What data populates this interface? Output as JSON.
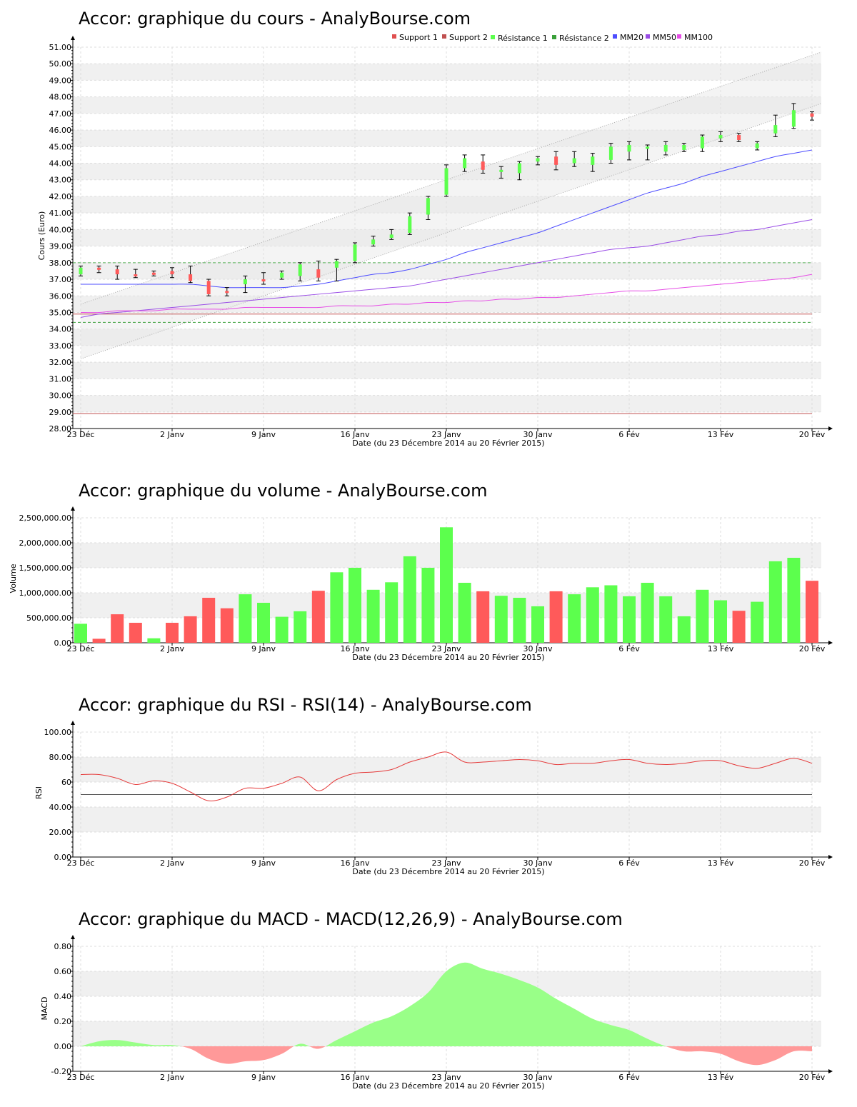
{
  "colors": {
    "up": "#5cff4d",
    "down": "#ff5a5a",
    "rsi_line": "#e53a3a",
    "ref_line": "#555555",
    "mm20": "#4d4dff",
    "mm50": "#9a4de6",
    "mm100": "#e64de6",
    "support": "#c05050",
    "resistance": "#3aa03a",
    "macd_pos": "#99ff88",
    "macd_neg": "#ff9999",
    "band": "#f0f0f0",
    "grid": "#dddddd"
  },
  "dates_axis": {
    "labels": [
      "23 Déc",
      "2 Janv",
      "9 Janv",
      "16 Janv",
      "23 Janv",
      "30 Janv",
      "6 Fév",
      "13 Fév",
      "20 Fév"
    ],
    "positions": [
      0,
      5,
      10,
      15,
      20,
      25,
      30,
      35,
      40
    ],
    "xlabel": "Date (du 23 Décembre 2014 au 20 Février 2015)"
  },
  "chart_data": [
    {
      "id": "price",
      "type": "candlestick",
      "title": "Accor: graphique du cours - AnalyBourse.com",
      "ylabel": "Cours (Euro)",
      "ylim": [
        28,
        51
      ],
      "yticks": [
        "28.00",
        "29.00",
        "30.00",
        "31.00",
        "32.00",
        "33.00",
        "34.00",
        "35.00",
        "36.00",
        "37.00",
        "38.00",
        "39.00",
        "40.00",
        "41.00",
        "42.00",
        "43.00",
        "44.00",
        "45.00",
        "46.00",
        "47.00",
        "48.00",
        "49.00",
        "50.00",
        "51.00"
      ],
      "legend": [
        "Support 1",
        "Support 2",
        "Résistance 1",
        "Résistance 2",
        "MM20",
        "MM50",
        "MM100"
      ],
      "legend_position": "top-right",
      "candles": [
        {
          "o": 37.3,
          "c": 37.7,
          "h": 37.8,
          "l": 37.2
        },
        {
          "o": 37.7,
          "c": 37.6,
          "h": 37.8,
          "l": 37.4
        },
        {
          "o": 37.6,
          "c": 37.3,
          "h": 37.8,
          "l": 37.0
        },
        {
          "o": 37.3,
          "c": 37.2,
          "h": 37.6,
          "l": 37.1
        },
        {
          "o": 37.4,
          "c": 37.3,
          "h": 37.5,
          "l": 37.2
        },
        {
          "o": 37.5,
          "c": 37.3,
          "h": 37.7,
          "l": 37.1
        },
        {
          "o": 37.3,
          "c": 36.9,
          "h": 37.8,
          "l": 36.8
        },
        {
          "o": 36.9,
          "c": 36.1,
          "h": 37.0,
          "l": 36.0
        },
        {
          "o": 36.3,
          "c": 36.2,
          "h": 36.5,
          "l": 36.0
        },
        {
          "o": 36.7,
          "c": 37.0,
          "h": 37.2,
          "l": 36.2
        },
        {
          "o": 37.0,
          "c": 36.9,
          "h": 37.4,
          "l": 36.7
        },
        {
          "o": 37.1,
          "c": 37.4,
          "h": 37.5,
          "l": 37.0
        },
        {
          "o": 37.2,
          "c": 37.9,
          "h": 38.0,
          "l": 36.9
        },
        {
          "o": 37.6,
          "c": 37.1,
          "h": 38.1,
          "l": 36.9
        },
        {
          "o": 37.7,
          "c": 38.1,
          "h": 38.2,
          "l": 36.9
        },
        {
          "o": 38.1,
          "c": 39.1,
          "h": 39.2,
          "l": 38.0
        },
        {
          "o": 39.1,
          "c": 39.4,
          "h": 39.6,
          "l": 39.0
        },
        {
          "o": 39.5,
          "c": 39.7,
          "h": 40.0,
          "l": 39.4
        },
        {
          "o": 39.8,
          "c": 40.8,
          "h": 41.0,
          "l": 39.7
        },
        {
          "o": 40.9,
          "c": 41.9,
          "h": 42.0,
          "l": 40.6
        },
        {
          "o": 42.1,
          "c": 43.7,
          "h": 43.9,
          "l": 42.0
        },
        {
          "o": 43.7,
          "c": 44.3,
          "h": 44.5,
          "l": 43.5
        },
        {
          "o": 44.1,
          "c": 43.6,
          "h": 44.5,
          "l": 43.4
        },
        {
          "o": 43.5,
          "c": 43.6,
          "h": 43.8,
          "l": 43.1
        },
        {
          "o": 43.4,
          "c": 44.0,
          "h": 44.1,
          "l": 43.0
        },
        {
          "o": 44.1,
          "c": 44.3,
          "h": 44.4,
          "l": 43.9
        },
        {
          "o": 44.4,
          "c": 43.9,
          "h": 44.7,
          "l": 43.6
        },
        {
          "o": 44.0,
          "c": 44.3,
          "h": 44.7,
          "l": 43.8
        },
        {
          "o": 43.9,
          "c": 44.4,
          "h": 44.6,
          "l": 43.5
        },
        {
          "o": 44.2,
          "c": 45.0,
          "h": 45.2,
          "l": 44.0
        },
        {
          "o": 44.7,
          "c": 45.1,
          "h": 45.3,
          "l": 44.2
        },
        {
          "o": 44.9,
          "c": 45.0,
          "h": 45.1,
          "l": 44.2
        },
        {
          "o": 44.7,
          "c": 45.1,
          "h": 45.3,
          "l": 44.5
        },
        {
          "o": 44.8,
          "c": 45.1,
          "h": 45.2,
          "l": 44.7
        },
        {
          "o": 44.9,
          "c": 45.6,
          "h": 45.7,
          "l": 44.7
        },
        {
          "o": 45.5,
          "c": 45.7,
          "h": 45.9,
          "l": 45.3
        },
        {
          "o": 45.7,
          "c": 45.4,
          "h": 45.8,
          "l": 45.3
        },
        {
          "o": 44.9,
          "c": 45.2,
          "h": 45.3,
          "l": 44.8
        },
        {
          "o": 45.8,
          "c": 46.3,
          "h": 46.9,
          "l": 45.6
        },
        {
          "o": 46.2,
          "c": 47.2,
          "h": 47.6,
          "l": 46.1
        },
        {
          "o": 47.0,
          "c": 46.8,
          "h": 47.1,
          "l": 46.6
        }
      ],
      "mm20": [
        36.7,
        36.7,
        36.7,
        36.7,
        36.7,
        36.7,
        36.7,
        36.6,
        36.5,
        36.5,
        36.5,
        36.5,
        36.6,
        36.7,
        36.9,
        37.1,
        37.3,
        37.4,
        37.6,
        37.9,
        38.2,
        38.6,
        38.9,
        39.2,
        39.5,
        39.8,
        40.2,
        40.6,
        41.0,
        41.4,
        41.8,
        42.2,
        42.5,
        42.8,
        43.2,
        43.5,
        43.8,
        44.1,
        44.4,
        44.6,
        44.8
      ],
      "mm50": [
        34.7,
        34.9,
        35.0,
        35.1,
        35.2,
        35.3,
        35.4,
        35.5,
        35.6,
        35.7,
        35.8,
        35.9,
        36.0,
        36.1,
        36.2,
        36.3,
        36.4,
        36.5,
        36.6,
        36.8,
        37.0,
        37.2,
        37.4,
        37.6,
        37.8,
        38.0,
        38.2,
        38.4,
        38.6,
        38.8,
        38.9,
        39.0,
        39.2,
        39.4,
        39.6,
        39.7,
        39.9,
        40.0,
        40.2,
        40.4,
        40.6
      ],
      "mm100": [
        35.0,
        35.0,
        35.1,
        35.1,
        35.1,
        35.2,
        35.2,
        35.2,
        35.2,
        35.3,
        35.3,
        35.3,
        35.3,
        35.3,
        35.4,
        35.4,
        35.4,
        35.5,
        35.5,
        35.6,
        35.6,
        35.7,
        35.7,
        35.8,
        35.8,
        35.9,
        35.9,
        36.0,
        36.1,
        36.2,
        36.3,
        36.3,
        36.4,
        36.5,
        36.6,
        36.7,
        36.8,
        36.9,
        37.0,
        37.1,
        37.3
      ],
      "support_1": 28.9,
      "support_2": 34.9,
      "resistance_1": 38.0,
      "resistance_2": 34.4,
      "channel": {
        "x_start": 0,
        "x_end": 40.5,
        "lower_start": 32.2,
        "lower_end": 47.6,
        "upper_start": 35.5,
        "upper_end": 50.7
      }
    },
    {
      "id": "volume",
      "type": "bar",
      "title": "Accor: graphique du volume - AnalyBourse.com",
      "ylabel": "Volume",
      "ylim": [
        0,
        2500000
      ],
      "yticks": [
        "0.00",
        "500,000.00",
        "1,000,000.00",
        "1,500,000.00",
        "2,000,000.00",
        "2,500,000.00"
      ],
      "values": [
        380000,
        80000,
        570000,
        400000,
        90000,
        400000,
        530000,
        900000,
        690000,
        970000,
        800000,
        520000,
        630000,
        1040000,
        1410000,
        1500000,
        1060000,
        1210000,
        1730000,
        1500000,
        2310000,
        1200000,
        1030000,
        940000,
        900000,
        730000,
        1030000,
        970000,
        1110000,
        1150000,
        930000,
        1200000,
        930000,
        530000,
        1060000,
        850000,
        640000,
        820000,
        1630000,
        1700000,
        1240000
      ],
      "direction": [
        "up",
        "down",
        "down",
        "down",
        "up",
        "down",
        "down",
        "down",
        "down",
        "up",
        "up",
        "up",
        "up",
        "down",
        "up",
        "up",
        "up",
        "up",
        "up",
        "up",
        "up",
        "up",
        "down",
        "up",
        "up",
        "up",
        "down",
        "up",
        "up",
        "up",
        "up",
        "up",
        "up",
        "up",
        "up",
        "up",
        "down",
        "up",
        "up",
        "up",
        "down"
      ]
    },
    {
      "id": "rsi",
      "type": "line",
      "title": "Accor: graphique du RSI - RSI(14) - AnalyBourse.com",
      "ylabel": "RSI",
      "ylim": [
        0,
        100
      ],
      "yticks": [
        "0.00",
        "20.00",
        "40.00",
        "60",
        "80.00",
        "100.00"
      ],
      "reference": 50,
      "values": [
        66,
        66,
        63,
        58,
        61,
        59,
        52,
        45,
        48,
        55,
        55,
        59,
        64,
        53,
        62,
        67,
        68,
        70,
        76,
        80,
        84,
        76,
        76,
        77,
        78,
        77,
        74,
        75,
        75,
        77,
        78,
        75,
        74,
        75,
        77,
        77,
        73,
        71,
        75,
        79,
        75
      ]
    },
    {
      "id": "macd",
      "type": "area",
      "title": "Accor: graphique du MACD - MACD(12,26,9) - AnalyBourse.com",
      "ylabel": "MACD",
      "ylim": [
        -0.2,
        0.8
      ],
      "yticks": [
        "-0.20",
        "0.00",
        "0.20",
        "0.40",
        "0.60",
        "0.80"
      ],
      "values": [
        0.0,
        0.04,
        0.05,
        0.03,
        0.01,
        0.01,
        -0.02,
        -0.1,
        -0.14,
        -0.12,
        -0.11,
        -0.06,
        0.02,
        -0.02,
        0.05,
        0.12,
        0.19,
        0.24,
        0.32,
        0.43,
        0.6,
        0.67,
        0.62,
        0.58,
        0.53,
        0.47,
        0.38,
        0.3,
        0.22,
        0.17,
        0.13,
        0.06,
        0.0,
        -0.04,
        -0.04,
        -0.06,
        -0.12,
        -0.15,
        -0.11,
        -0.04,
        -0.04
      ]
    }
  ]
}
